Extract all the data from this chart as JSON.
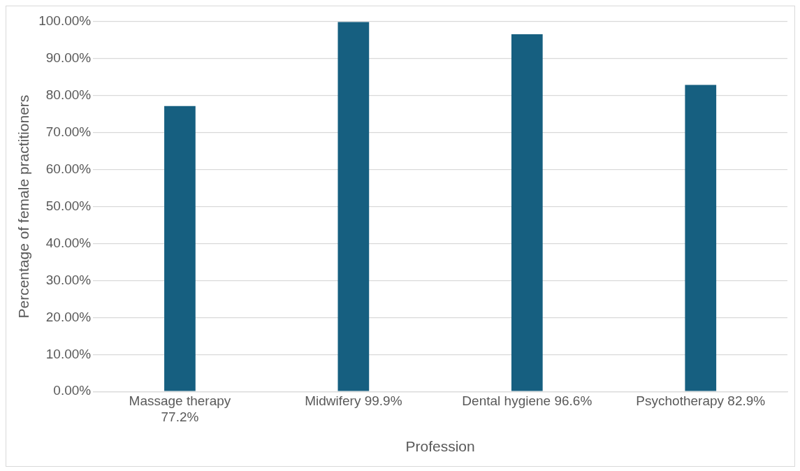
{
  "chart_data": {
    "type": "bar",
    "xlabel": "Profession",
    "ylabel": "Percentage of female practitioners",
    "categories": [
      "Massage therapy 77.2%",
      "Midwifery 99.9%",
      "Dental hygiene 96.6%",
      "Psychotherapy 82.9%"
    ],
    "values": [
      77.2,
      99.9,
      96.6,
      82.9
    ],
    "color": "#165f80",
    "ylim": [
      0,
      100
    ],
    "yticks": [
      {
        "value": 0,
        "label": "0.00%"
      },
      {
        "value": 10,
        "label": "10.00%"
      },
      {
        "value": 20,
        "label": "20.00%"
      },
      {
        "value": 30,
        "label": "30.00%"
      },
      {
        "value": 40,
        "label": "40.00%"
      },
      {
        "value": 50,
        "label": "50.00%"
      },
      {
        "value": 60,
        "label": "60.00%"
      },
      {
        "value": 70,
        "label": "70.00%"
      },
      {
        "value": 80,
        "label": "80.00%"
      },
      {
        "value": 90,
        "label": "90.00%"
      },
      {
        "value": 100,
        "label": "100.00%"
      }
    ],
    "grid": "y",
    "legend": false
  }
}
